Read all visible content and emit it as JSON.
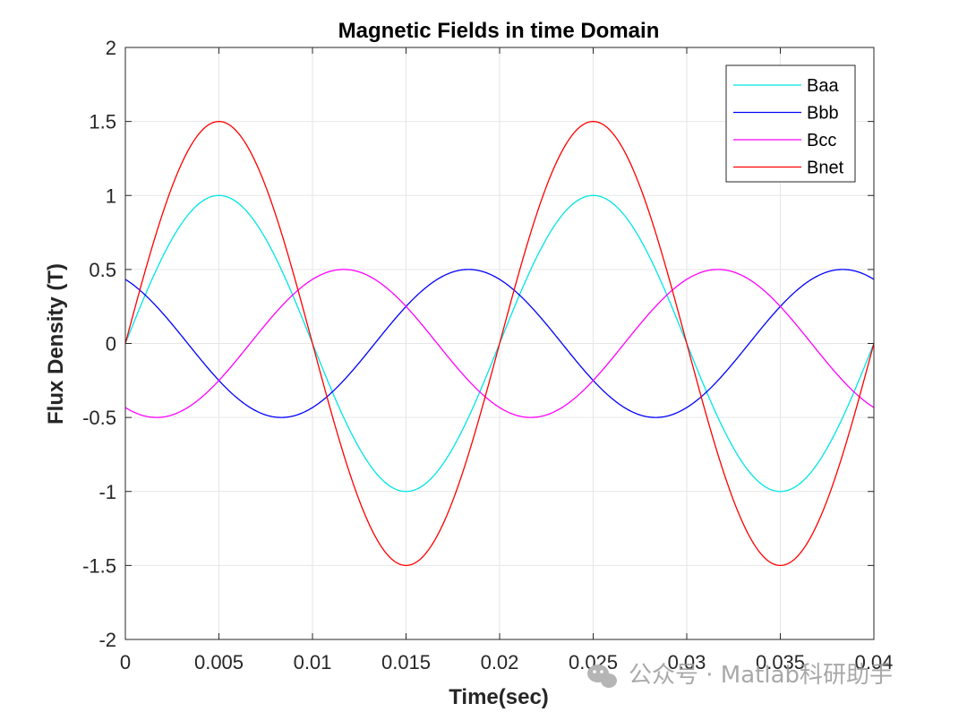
{
  "chart_data": {
    "type": "line",
    "title": "Magnetic Fields in time Domain",
    "xlabel": "Time(sec)",
    "ylabel": "Flux Density (T)",
    "xlim": [
      0,
      0.04
    ],
    "ylim": [
      -2,
      2
    ],
    "xticks": [
      0,
      0.005,
      0.01,
      0.015,
      0.02,
      0.025,
      0.03,
      0.035,
      0.04
    ],
    "xtick_labels": [
      "0",
      "0.005",
      "0.01",
      "0.015",
      "0.02",
      "0.025",
      "0.03",
      "0.035",
      "0.04"
    ],
    "yticks": [
      2,
      1.5,
      1,
      0.5,
      0,
      -0.5,
      -1,
      -1.5,
      -2
    ],
    "ytick_labels": [
      "2",
      "1.5",
      "1",
      "0.5",
      "0",
      "-0.5",
      "-1",
      "-1.5",
      "-2"
    ],
    "grid": true,
    "legend_position": "top-right",
    "frequency_hz": 50,
    "series": [
      {
        "name": "Baa",
        "color": "#00e5e5",
        "amplitude": 1.0,
        "phase_deg": 0
      },
      {
        "name": "Bbb",
        "color": "#0000ff",
        "amplitude": 0.5,
        "phase_deg": 120
      },
      {
        "name": "Bcc",
        "color": "#ff00ff",
        "amplitude": 0.5,
        "phase_deg": -120
      },
      {
        "name": "Bnet",
        "color": "#ff0000",
        "amplitude": 1.5,
        "phase_deg": 0
      }
    ]
  },
  "watermark": {
    "text": "公众号 · Matlab科研助手",
    "icon": "wechat-icon"
  }
}
